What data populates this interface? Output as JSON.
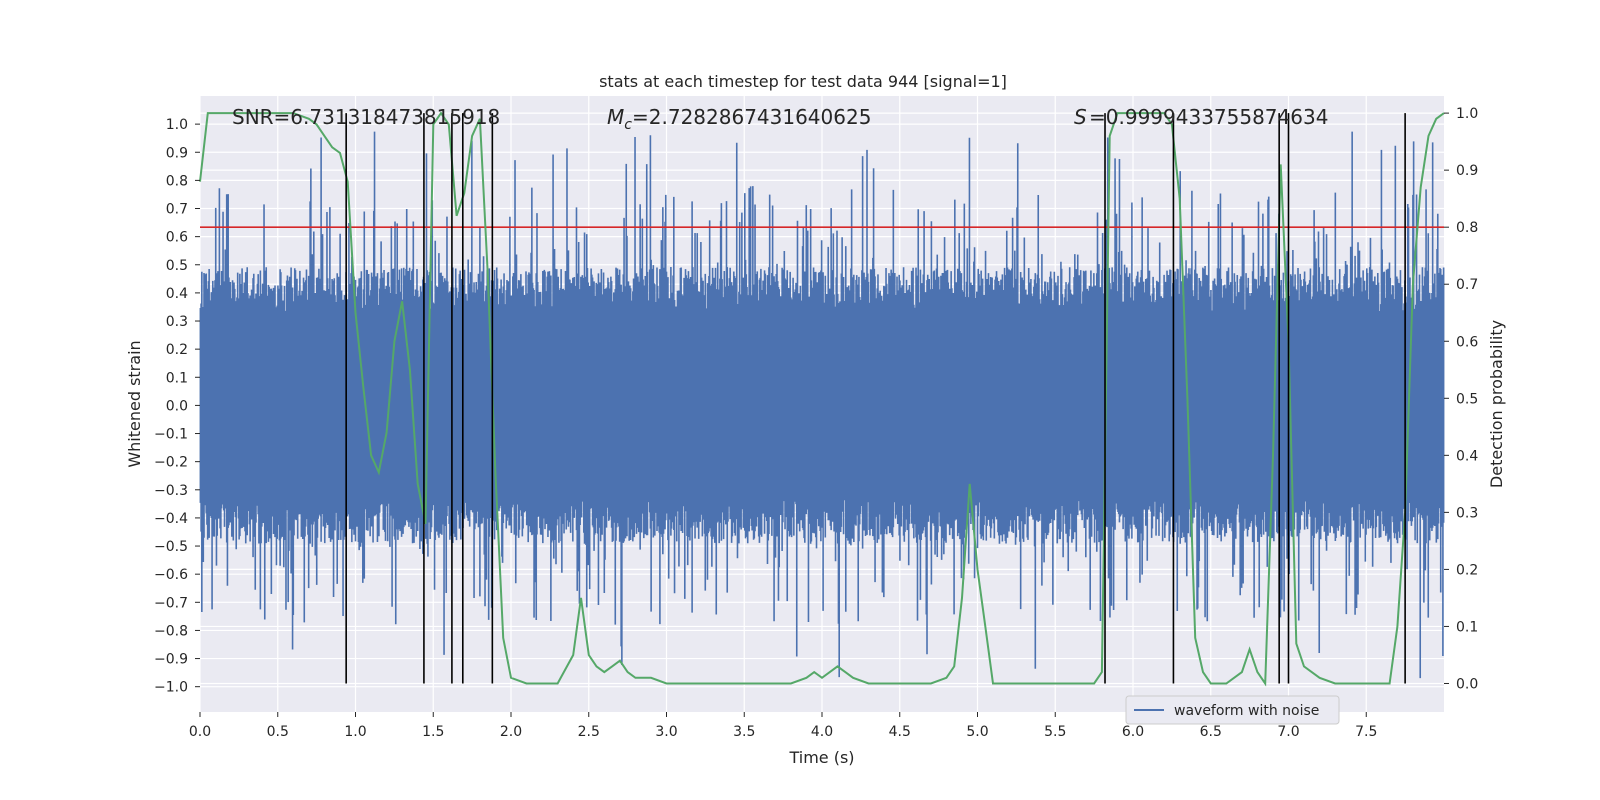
{
  "chart_data": {
    "type": "line",
    "title": "stats at each timestep for test data 944 [signal=1]",
    "xlabel": "Time (s)",
    "ylabel_left": "Whitened strain",
    "ylabel_right": "Detection probability",
    "xlim": [
      0.0,
      8.0
    ],
    "ylim_left": [
      -1.09,
      1.1
    ],
    "ylim_right": [
      -0.05,
      1.03
    ],
    "x_ticks": [
      "0.0",
      "0.5",
      "1.0",
      "1.5",
      "2.0",
      "2.5",
      "3.0",
      "3.5",
      "4.0",
      "4.5",
      "5.0",
      "5.5",
      "6.0",
      "6.5",
      "7.0",
      "7.5"
    ],
    "y_left_ticks": [
      "1.0",
      "0.9",
      "0.8",
      "0.7",
      "0.6",
      "0.5",
      "0.4",
      "0.3",
      "0.2",
      "0.1",
      "0.0",
      "-0.1",
      "-0.2",
      "-0.3",
      "-0.4",
      "-0.5",
      "-0.6",
      "-0.7",
      "-0.8",
      "-0.9",
      "-1.0"
    ],
    "y_right_ticks": [
      "1.0",
      "0.9",
      "0.8",
      "0.7",
      "0.6",
      "0.5",
      "0.4",
      "0.3",
      "0.2",
      "0.1",
      "0.0"
    ],
    "annotations": {
      "snr": "SNR=6.731318473815918",
      "mc": "=2.7282867431640625",
      "s": "=0.9999433755874634"
    },
    "legend": {
      "entries": [
        "waveform with noise"
      ],
      "location": "lower right"
    },
    "threshold": {
      "value": 0.8,
      "axis": "right",
      "color": "#d62728"
    },
    "detection_lines_x": [
      0.94,
      1.44,
      1.62,
      1.69,
      1.88,
      5.82,
      6.26,
      6.94,
      7.0,
      7.75
    ],
    "waveform": {
      "name": "waveform with noise",
      "color": "#4c72b0",
      "typical_amplitude": 0.38,
      "peak_amplitude": 0.98
    },
    "probability": {
      "color": "#55a868",
      "x": [
        0.0,
        0.05,
        0.1,
        0.2,
        0.3,
        0.4,
        0.5,
        0.6,
        0.7,
        0.75,
        0.8,
        0.85,
        0.9,
        0.95,
        1.0,
        1.05,
        1.1,
        1.15,
        1.2,
        1.25,
        1.3,
        1.35,
        1.4,
        1.45,
        1.5,
        1.55,
        1.6,
        1.65,
        1.7,
        1.75,
        1.8,
        1.85,
        1.9,
        1.95,
        2.0,
        2.1,
        2.2,
        2.3,
        2.4,
        2.45,
        2.5,
        2.55,
        2.6,
        2.65,
        2.7,
        2.75,
        2.8,
        2.9,
        3.0,
        3.2,
        3.4,
        3.6,
        3.8,
        3.9,
        3.95,
        4.0,
        4.05,
        4.1,
        4.15,
        4.2,
        4.3,
        4.4,
        4.5,
        4.6,
        4.7,
        4.8,
        4.85,
        4.9,
        4.95,
        5.0,
        5.05,
        5.1,
        5.2,
        5.4,
        5.6,
        5.75,
        5.8,
        5.85,
        5.9,
        5.95,
        6.0,
        6.1,
        6.2,
        6.25,
        6.3,
        6.35,
        6.4,
        6.45,
        6.5,
        6.6,
        6.7,
        6.75,
        6.8,
        6.85,
        6.9,
        6.95,
        7.0,
        7.05,
        7.1,
        7.2,
        7.3,
        7.4,
        7.5,
        7.6,
        7.65,
        7.7,
        7.75,
        7.8,
        7.85,
        7.9,
        7.95,
        8.0
      ],
      "y": [
        0.88,
        1.0,
        1.0,
        1.0,
        1.0,
        1.0,
        1.0,
        1.0,
        0.99,
        0.98,
        0.96,
        0.94,
        0.93,
        0.88,
        0.65,
        0.52,
        0.4,
        0.37,
        0.44,
        0.6,
        0.67,
        0.55,
        0.35,
        0.28,
        0.98,
        1.0,
        0.98,
        0.82,
        0.86,
        0.96,
        0.99,
        0.72,
        0.37,
        0.08,
        0.01,
        0.0,
        0.0,
        0.0,
        0.05,
        0.15,
        0.05,
        0.03,
        0.02,
        0.03,
        0.04,
        0.02,
        0.01,
        0.01,
        0.0,
        0.0,
        0.0,
        0.0,
        0.0,
        0.01,
        0.02,
        0.01,
        0.02,
        0.03,
        0.02,
        0.01,
        0.0,
        0.0,
        0.0,
        0.0,
        0.0,
        0.01,
        0.03,
        0.15,
        0.35,
        0.2,
        0.1,
        0.0,
        0.0,
        0.0,
        0.0,
        0.0,
        0.02,
        0.96,
        1.0,
        1.0,
        1.0,
        1.0,
        1.0,
        0.98,
        0.85,
        0.5,
        0.08,
        0.02,
        0.0,
        0.0,
        0.02,
        0.06,
        0.02,
        0.0,
        0.4,
        0.91,
        0.6,
        0.07,
        0.03,
        0.01,
        0.0,
        0.0,
        0.0,
        0.0,
        0.0,
        0.1,
        0.3,
        0.7,
        0.87,
        0.96,
        0.99,
        1.0
      ]
    }
  }
}
